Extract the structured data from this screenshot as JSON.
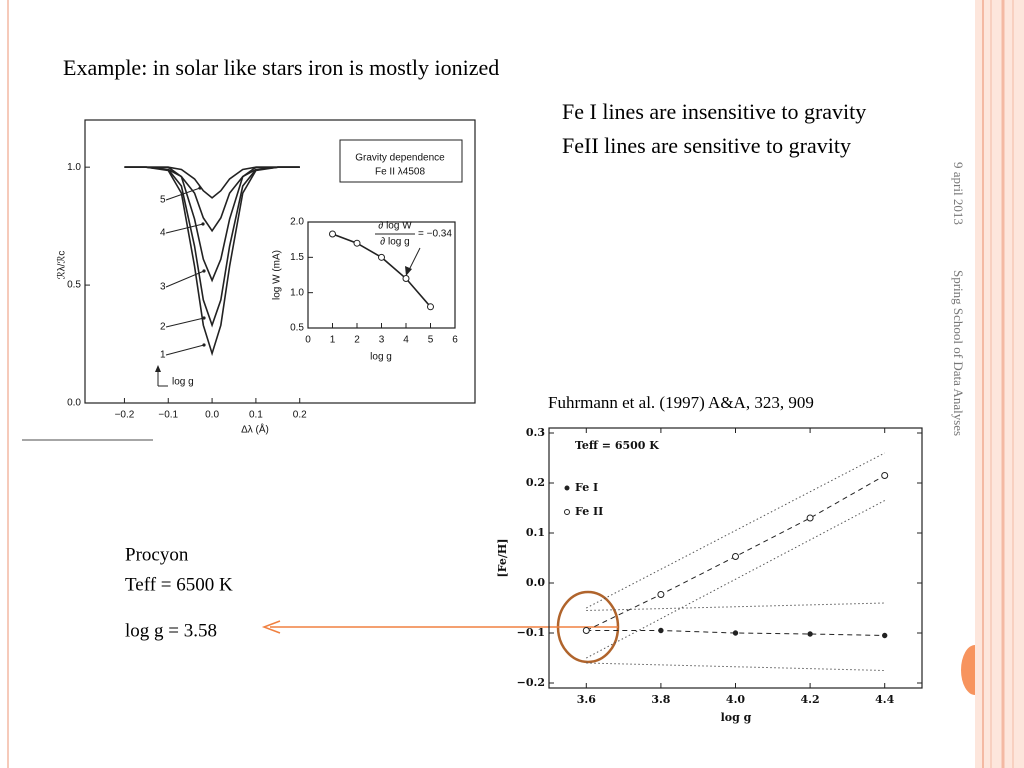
{
  "slide": {
    "title": "Example: in solar like stars iron is mostly ionized",
    "bullets": [
      "Fe I lines are insensitive to gravity",
      "FeII lines are sensitive to gravity"
    ],
    "date": "9 april 2013",
    "footer": "Spring School of Data Analyses",
    "citation": "Fuhrmann et al. (1997) A&A, 323, 909",
    "note": [
      "Procyon",
      "Teff = 6500 K",
      "log g = 3.58"
    ]
  },
  "chart_data": [
    {
      "type": "line",
      "xlabel": "Δλ (Å)",
      "ylabel": "ℛλ/ℛc",
      "xlim": [
        -0.29,
        0.6
      ],
      "ylim": [
        0,
        1.2
      ],
      "xticks": [
        {
          "value": -0.2,
          "label": "−0.2"
        },
        {
          "value": -0.1,
          "label": "−0.1"
        },
        {
          "value": 0,
          "label": "0.0"
        },
        0.1,
        0.2
      ],
      "yticks": [
        {
          "value": 0,
          "label": "0.0"
        },
        0.5,
        {
          "value": 1,
          "label": "1.0"
        }
      ],
      "annotations": [
        "5",
        "4",
        "3",
        "2",
        "1",
        "log g",
        "Gravity dependence",
        "Fe II λ4508"
      ],
      "series": [
        {
          "color": "#222",
          "x": [
            -0.2,
            -0.15,
            -0.1,
            -0.07,
            -0.04,
            -0.02,
            0,
            0.02,
            0.04,
            0.07,
            0.1,
            0.15,
            0.2
          ],
          "values": [
            1,
            1,
            0.99,
            0.96,
            0.89,
            0.785,
            0.73,
            0.785,
            0.89,
            0.96,
            0.99,
            1,
            1
          ]
        },
        {
          "color": "#222",
          "x": [
            -0.2,
            -0.15,
            -0.1,
            -0.07,
            -0.04,
            -0.02,
            0,
            0.02,
            0.04,
            0.07,
            0.1,
            0.15,
            0.2
          ],
          "values": [
            1,
            1,
            1,
            0.99,
            0.95,
            0.9,
            0.87,
            0.9,
            0.95,
            0.99,
            1,
            1,
            1
          ]
        },
        {
          "color": "#222",
          "x": [
            -0.2,
            -0.15,
            -0.1,
            -0.07,
            -0.04,
            -0.02,
            0,
            0.02,
            0.04,
            0.07,
            0.1,
            0.15,
            0.2
          ],
          "values": [
            1,
            1,
            1,
            0.96,
            0.78,
            0.61,
            0.52,
            0.61,
            0.78,
            0.96,
            1,
            1,
            1
          ]
        },
        {
          "color": "#222",
          "x": [
            -0.2,
            -0.15,
            -0.1,
            -0.07,
            -0.04,
            -0.02,
            0,
            0.02,
            0.04,
            0.07,
            0.1,
            0.15,
            0.2
          ],
          "values": [
            1,
            1,
            0.99,
            0.92,
            0.665,
            0.437,
            0.33,
            0.437,
            0.665,
            0.92,
            0.99,
            1,
            1
          ]
        },
        {
          "color": "#222",
          "x": [
            -0.2,
            -0.15,
            -0.1,
            -0.07,
            -0.04,
            -0.02,
            0,
            0.02,
            0.04,
            0.07,
            0.1,
            0.15,
            0.2
          ],
          "values": [
            1,
            1,
            0.986,
            0.89,
            0.58,
            0.33,
            0.21,
            0.33,
            0.58,
            0.89,
            0.986,
            1,
            1
          ]
        }
      ]
    },
    {
      "type": "line",
      "xlabel": "log g",
      "ylabel": "log W (mA)",
      "xlim": [
        0,
        6
      ],
      "ylim": [
        0.5,
        2
      ],
      "xticks": [
        0,
        1,
        2,
        3,
        4,
        5,
        6
      ],
      "yticks": [
        0.5,
        {
          "value": 1,
          "label": "1.0"
        },
        1.5,
        {
          "value": 2,
          "label": "2.0"
        }
      ],
      "annotations": [
        "∂ log W",
        "∂ log g",
        "= −0.34"
      ],
      "series": [
        {
          "color": "#222",
          "marker": "open-circle",
          "x": [
            1,
            2,
            3,
            4,
            5
          ],
          "values": [
            1.83,
            1.7,
            1.5,
            1.2,
            0.8
          ]
        }
      ]
    },
    {
      "type": "line",
      "title": "Teff = 6500 K",
      "xlabel": "log g",
      "ylabel": "[Fe/H]",
      "xlim": [
        3.5,
        4.5
      ],
      "ylim": [
        -0.21,
        0.31
      ],
      "xticks": [
        3.6,
        3.8,
        {
          "value": 4,
          "label": "4.0"
        },
        4.2,
        4.4
      ],
      "yticks": [
        {
          "value": -0.2,
          "label": "−0.2"
        },
        {
          "value": -0.1,
          "label": "−0.1"
        },
        {
          "value": 0,
          "label": "0.0"
        },
        0.1,
        0.2,
        0.3
      ],
      "series": [
        {
          "name": "Fe I",
          "color": "#222",
          "marker": "dot",
          "dash": "dashed",
          "x": [
            3.6,
            3.8,
            4.0,
            4.2,
            4.4
          ],
          "values": [
            -0.095,
            -0.095,
            -0.1,
            -0.102,
            -0.105
          ]
        },
        {
          "name": "Fe II",
          "color": "#222",
          "marker": "open-circle",
          "dash": "dashed",
          "x": [
            3.6,
            3.8,
            4.0,
            4.2,
            4.4
          ],
          "values": [
            -0.095,
            -0.023,
            0.053,
            0.13,
            0.215
          ]
        },
        {
          "color": "#555",
          "dash": "dotted",
          "x": [
            3.6,
            4.4
          ],
          "values": [
            -0.05,
            0.26
          ]
        },
        {
          "color": "#555",
          "dash": "dotted",
          "x": [
            3.6,
            4.4
          ],
          "values": [
            -0.15,
            0.165
          ]
        },
        {
          "color": "#555",
          "dash": "dotted",
          "x": [
            3.6,
            4.4
          ],
          "values": [
            -0.055,
            -0.04
          ]
        },
        {
          "color": "#555",
          "dash": "dotted",
          "x": [
            3.6,
            4.4
          ],
          "values": [
            -0.16,
            -0.175
          ]
        }
      ]
    }
  ]
}
